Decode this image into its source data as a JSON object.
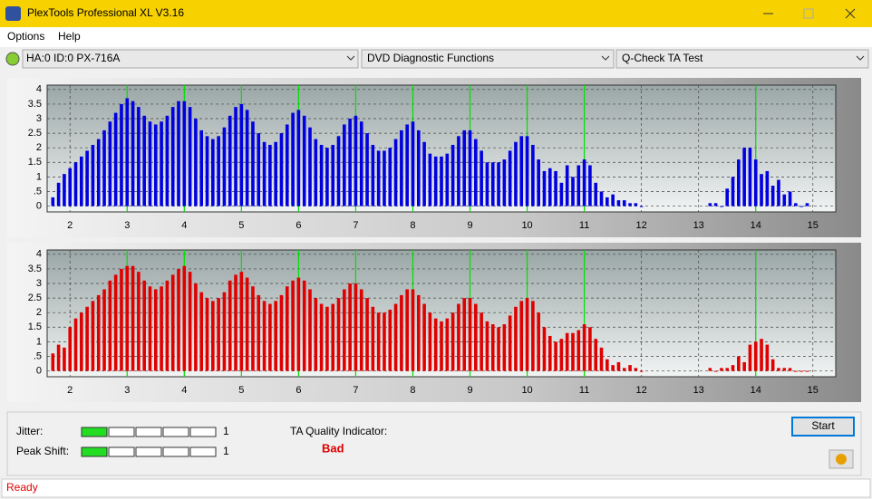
{
  "window": {
    "title": "PlexTools Professional XL V3.16"
  },
  "menu": [
    "Options",
    "Help"
  ],
  "toolbar": {
    "drive": "HA:0 ID:0  PX-716A",
    "function": "DVD Diagnostic Functions",
    "test": "Q-Check TA Test"
  },
  "charts": [
    {
      "type": "bar",
      "color": "#0000e0",
      "marker_color": "#00e000",
      "x": [
        1.7,
        1.8,
        1.9,
        2.0,
        2.1,
        2.2,
        2.3,
        2.4,
        2.5,
        2.6,
        2.7,
        2.8,
        2.9,
        3.0,
        3.1,
        3.2,
        3.3,
        3.4,
        3.5,
        3.6,
        3.7,
        3.8,
        3.9,
        4.0,
        4.1,
        4.2,
        4.3,
        4.4,
        4.5,
        4.6,
        4.7,
        4.8,
        4.9,
        5.0,
        5.1,
        5.2,
        5.3,
        5.4,
        5.5,
        5.6,
        5.7,
        5.8,
        5.9,
        6.0,
        6.1,
        6.2,
        6.3,
        6.4,
        6.5,
        6.6,
        6.7,
        6.8,
        6.9,
        7.0,
        7.1,
        7.2,
        7.3,
        7.4,
        7.5,
        7.6,
        7.7,
        7.8,
        7.9,
        8.0,
        8.1,
        8.2,
        8.3,
        8.4,
        8.5,
        8.6,
        8.7,
        8.8,
        8.9,
        9.0,
        9.1,
        9.2,
        9.3,
        9.4,
        9.5,
        9.6,
        9.7,
        9.8,
        9.9,
        10.0,
        10.1,
        10.2,
        10.3,
        10.4,
        10.5,
        10.6,
        10.7,
        10.8,
        10.9,
        11.0,
        11.1,
        11.2,
        11.3,
        11.4,
        11.5,
        11.6,
        11.7,
        11.8,
        11.9,
        12.0,
        13.2,
        13.3,
        13.4,
        13.5,
        13.6,
        13.7,
        13.8,
        13.9,
        14.0,
        14.1,
        14.2,
        14.3,
        14.4,
        14.5,
        14.6,
        14.7,
        14.8,
        14.9
      ],
      "values": [
        0.3,
        0.8,
        1.1,
        1.3,
        1.5,
        1.7,
        1.9,
        2.1,
        2.3,
        2.6,
        2.9,
        3.2,
        3.5,
        3.7,
        3.6,
        3.4,
        3.1,
        2.9,
        2.8,
        2.9,
        3.1,
        3.4,
        3.6,
        3.6,
        3.4,
        3.0,
        2.6,
        2.4,
        2.3,
        2.4,
        2.7,
        3.1,
        3.4,
        3.5,
        3.3,
        2.9,
        2.5,
        2.2,
        2.1,
        2.2,
        2.5,
        2.8,
        3.2,
        3.3,
        3.1,
        2.7,
        2.3,
        2.1,
        2.0,
        2.1,
        2.4,
        2.8,
        3.0,
        3.1,
        2.9,
        2.5,
        2.1,
        1.9,
        1.9,
        2.0,
        2.3,
        2.6,
        2.8,
        2.9,
        2.6,
        2.2,
        1.8,
        1.7,
        1.7,
        1.8,
        2.1,
        2.4,
        2.6,
        2.6,
        2.3,
        1.9,
        1.5,
        1.5,
        1.5,
        1.6,
        1.9,
        2.2,
        2.4,
        2.4,
        2.1,
        1.6,
        1.2,
        1.3,
        1.2,
        0.8,
        1.4,
        1.0,
        1.4,
        1.6,
        1.4,
        0.8,
        0.5,
        0.3,
        0.4,
        0.2,
        0.2,
        0.1,
        0.1,
        0.0,
        0.1,
        0.1,
        0.0,
        0.6,
        1.0,
        1.6,
        2.0,
        2.0,
        1.6,
        1.1,
        1.2,
        0.7,
        0.9,
        0.4,
        0.5,
        0.1,
        0.0,
        0.1
      ],
      "xlim": [
        1.6,
        15.4
      ],
      "ylim": [
        -0.2,
        4.15
      ],
      "xticks": [
        2,
        3,
        4,
        5,
        6,
        7,
        8,
        9,
        10,
        11,
        12,
        13,
        14,
        15
      ],
      "yticks": [
        0,
        {
          "value": 0.5,
          "label": ".5"
        },
        1,
        1.5,
        2,
        2.5,
        3,
        3.5,
        4
      ],
      "markers": [
        3,
        4,
        5,
        6,
        7,
        8,
        9,
        10,
        11,
        14
      ]
    },
    {
      "type": "bar",
      "color": "#e00000",
      "marker_color": "#00e000",
      "x": [
        1.7,
        1.8,
        1.9,
        2.0,
        2.1,
        2.2,
        2.3,
        2.4,
        2.5,
        2.6,
        2.7,
        2.8,
        2.9,
        3.0,
        3.1,
        3.2,
        3.3,
        3.4,
        3.5,
        3.6,
        3.7,
        3.8,
        3.9,
        4.0,
        4.1,
        4.2,
        4.3,
        4.4,
        4.5,
        4.6,
        4.7,
        4.8,
        4.9,
        5.0,
        5.1,
        5.2,
        5.3,
        5.4,
        5.5,
        5.6,
        5.7,
        5.8,
        5.9,
        6.0,
        6.1,
        6.2,
        6.3,
        6.4,
        6.5,
        6.6,
        6.7,
        6.8,
        6.9,
        7.0,
        7.1,
        7.2,
        7.3,
        7.4,
        7.5,
        7.6,
        7.7,
        7.8,
        7.9,
        8.0,
        8.1,
        8.2,
        8.3,
        8.4,
        8.5,
        8.6,
        8.7,
        8.8,
        8.9,
        9.0,
        9.1,
        9.2,
        9.3,
        9.4,
        9.5,
        9.6,
        9.7,
        9.8,
        9.9,
        10.0,
        10.1,
        10.2,
        10.3,
        10.4,
        10.5,
        10.6,
        10.7,
        10.8,
        10.9,
        11.0,
        11.1,
        11.2,
        11.3,
        11.4,
        11.5,
        11.6,
        11.7,
        11.8,
        11.9,
        12.0,
        13.2,
        13.3,
        13.4,
        13.5,
        13.6,
        13.7,
        13.8,
        13.9,
        14.0,
        14.1,
        14.2,
        14.3,
        14.4,
        14.5,
        14.6,
        14.7,
        14.8,
        14.9
      ],
      "values": [
        0.6,
        0.9,
        0.8,
        1.5,
        1.8,
        2.0,
        2.2,
        2.4,
        2.6,
        2.8,
        3.1,
        3.3,
        3.5,
        3.6,
        3.6,
        3.4,
        3.1,
        2.9,
        2.8,
        2.9,
        3.1,
        3.3,
        3.5,
        3.6,
        3.4,
        3.0,
        2.7,
        2.5,
        2.4,
        2.5,
        2.7,
        3.1,
        3.3,
        3.4,
        3.2,
        2.9,
        2.6,
        2.4,
        2.3,
        2.4,
        2.6,
        2.9,
        3.1,
        3.2,
        3.1,
        2.8,
        2.5,
        2.3,
        2.2,
        2.3,
        2.5,
        2.8,
        3.0,
        3.0,
        2.8,
        2.5,
        2.2,
        2.0,
        2.0,
        2.1,
        2.3,
        2.6,
        2.8,
        2.8,
        2.6,
        2.3,
        2.0,
        1.8,
        1.7,
        1.8,
        2.0,
        2.3,
        2.5,
        2.5,
        2.3,
        2.0,
        1.7,
        1.6,
        1.5,
        1.6,
        1.9,
        2.2,
        2.4,
        2.5,
        2.4,
        2.0,
        1.5,
        1.2,
        1.0,
        1.1,
        1.3,
        1.3,
        1.4,
        1.6,
        1.5,
        1.1,
        0.8,
        0.4,
        0.2,
        0.3,
        0.1,
        0.2,
        0.1,
        0.0,
        0.1,
        0.0,
        0.1,
        0.1,
        0.2,
        0.5,
        0.3,
        0.9,
        1.0,
        1.1,
        0.9,
        0.4,
        0.1,
        0.1,
        0.1,
        0.0,
        0.0,
        0.0
      ],
      "xlim": [
        1.6,
        15.4
      ],
      "ylim": [
        -0.2,
        4.15
      ],
      "xticks": [
        2,
        3,
        4,
        5,
        6,
        7,
        8,
        9,
        10,
        11,
        12,
        13,
        14,
        15
      ],
      "yticks": [
        0,
        {
          "value": 0.5,
          "label": ".5"
        },
        1,
        1.5,
        2,
        2.5,
        3,
        3.5,
        4
      ],
      "markers": [
        3,
        4,
        5,
        6,
        7,
        8,
        9,
        10,
        11,
        14
      ]
    }
  ],
  "meters": [
    {
      "label": "Jitter:",
      "value": 1
    },
    {
      "label": "Peak Shift:",
      "value": 1
    }
  ],
  "quality": {
    "label": "TA Quality Indicator:",
    "value": "Bad"
  },
  "buttons": {
    "start": "Start"
  },
  "status": "Ready"
}
